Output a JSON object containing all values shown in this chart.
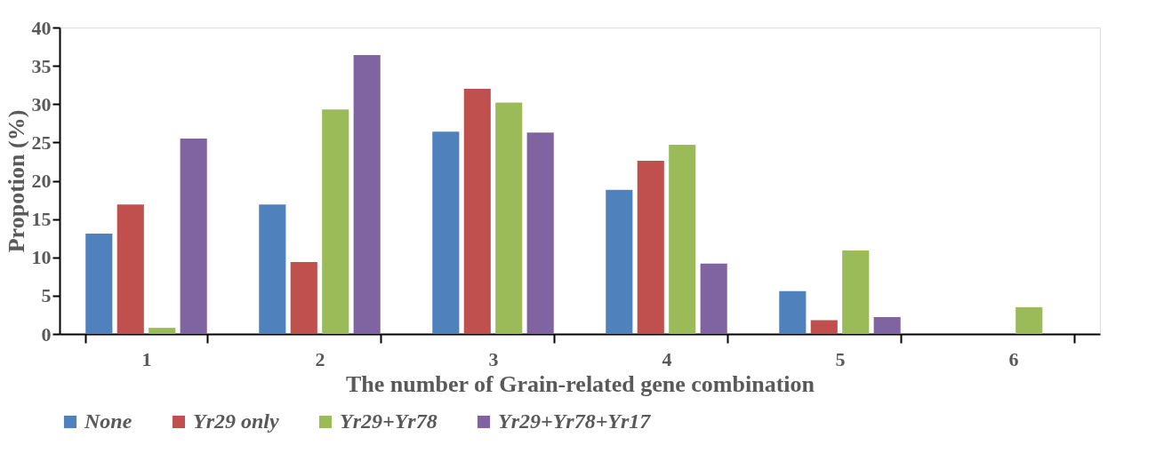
{
  "chart_data": {
    "type": "bar",
    "xlabel": "The number of Grain-related gene combination",
    "ylabel": "Propotion (%)",
    "categories": [
      "1",
      "2",
      "3",
      "4",
      "5",
      "6"
    ],
    "series": [
      {
        "name": "None",
        "color": "#4f81bd",
        "values": [
          13.1,
          16.9,
          26.4,
          18.8,
          5.6,
          0
        ]
      },
      {
        "name": "Yr29 only",
        "color": "#c0504d",
        "values": [
          16.9,
          9.4,
          32.0,
          22.6,
          1.8,
          0
        ]
      },
      {
        "name": "Yr29+Yr78",
        "color": "#9bbb59",
        "values": [
          0.8,
          29.3,
          30.2,
          24.7,
          10.9,
          3.5
        ]
      },
      {
        "name": "Yr29+Yr78+Yr17",
        "color": "#8064a2",
        "values": [
          25.5,
          36.4,
          26.3,
          9.2,
          2.2,
          0
        ]
      }
    ],
    "ylim": [
      0,
      40
    ],
    "yticks": [
      0,
      5,
      10,
      15,
      20,
      25,
      30,
      35,
      40
    ],
    "grid": false,
    "legend": "bottom"
  }
}
